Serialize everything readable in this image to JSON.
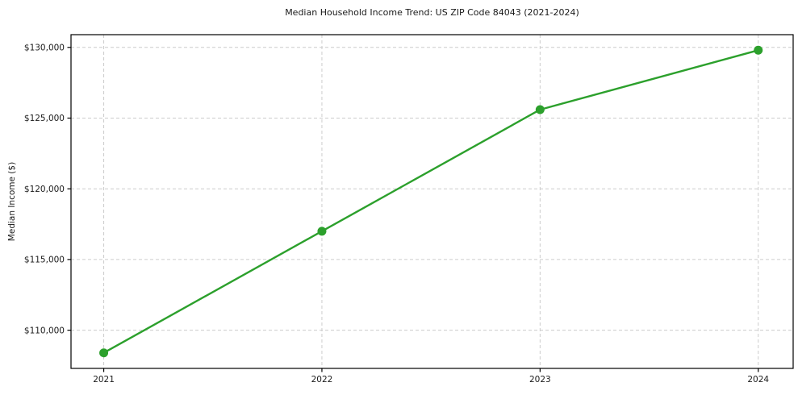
{
  "chart_data": {
    "type": "line",
    "title": "Median Household Income Trend: US ZIP Code 84043 (2021-2024)",
    "xlabel": "",
    "ylabel": "Median Income ($)",
    "x": [
      2021,
      2022,
      2023,
      2024
    ],
    "values": [
      108400,
      117000,
      125600,
      129800
    ],
    "xlim": [
      2020.85,
      2024.16
    ],
    "ylim": [
      107300,
      130900
    ],
    "xticks": {
      "values": [
        2021,
        2022,
        2023,
        2024
      ],
      "labels": [
        "2021",
        "2022",
        "2023",
        "2024"
      ]
    },
    "yticks": {
      "values": [
        110000,
        115000,
        120000,
        125000,
        130000
      ],
      "labels": [
        "$110,000",
        "$115,000",
        "$120,000",
        "$125,000",
        "$130,000"
      ]
    },
    "grid": true,
    "grid_style": "dashed",
    "legend_visible": false,
    "line_color": "#2ca02c",
    "marker_style": "circle",
    "grid_color": "#cccccc",
    "axis_color": "#000000",
    "text_color": "#1a1a1a",
    "background_color": "#ffffff"
  }
}
